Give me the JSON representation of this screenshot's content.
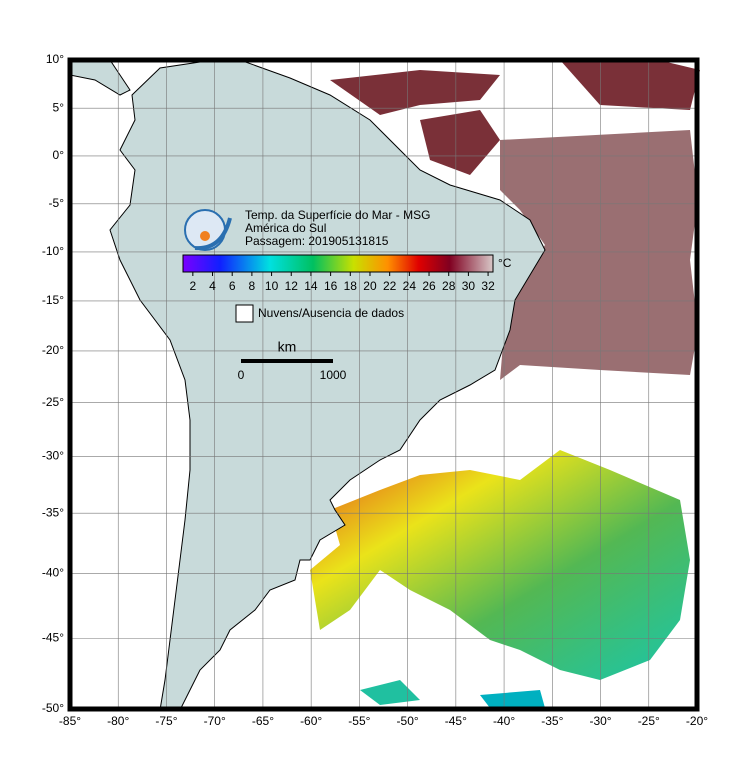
{
  "map": {
    "title": [
      "Temp. da Superfície do Mar - MSG",
      "América do Sul",
      "Passagem: 201905131815"
    ],
    "xlim": [
      -85,
      -20
    ],
    "ylim": [
      -50,
      10
    ],
    "xticks": [
      {
        "value": -85,
        "label": "-85°"
      },
      {
        "value": -80,
        "label": "-80°"
      },
      {
        "value": -75,
        "label": "-75°"
      },
      {
        "value": -70,
        "label": "-70°"
      },
      {
        "value": -65,
        "label": "-65°"
      },
      {
        "value": -60,
        "label": "-60°"
      },
      {
        "value": -55,
        "label": "-55°"
      },
      {
        "value": -50,
        "label": "-50°"
      },
      {
        "value": -45,
        "label": "-45°"
      },
      {
        "value": -40,
        "label": "-40°"
      },
      {
        "value": -35,
        "label": "-35°"
      },
      {
        "value": -30,
        "label": "-30°"
      },
      {
        "value": -25,
        "label": "-25°"
      },
      {
        "value": -20,
        "label": "-20°"
      }
    ],
    "yticks": [
      {
        "value": 10,
        "label": "10°"
      },
      {
        "value": 5,
        "label": "5°"
      },
      {
        "value": 0,
        "label": "0°"
      },
      {
        "value": -5,
        "label": "-5°"
      },
      {
        "value": -10,
        "label": "-10°"
      },
      {
        "value": -15,
        "label": "-15°"
      },
      {
        "value": -20,
        "label": "-20°"
      },
      {
        "value": -25,
        "label": "-25°"
      },
      {
        "value": -30,
        "label": "-30°"
      },
      {
        "value": -35,
        "label": "-35°"
      },
      {
        "value": -40,
        "label": "-40°"
      },
      {
        "value": -45,
        "label": "-45°"
      },
      {
        "value": -50,
        "label": "-50°"
      }
    ],
    "colorbar": {
      "unit": "°C",
      "clim": [
        1,
        32.5
      ],
      "ticks": [
        2,
        4,
        6,
        8,
        10,
        12,
        14,
        16,
        18,
        20,
        22,
        24,
        26,
        28,
        30,
        32
      ]
    },
    "legend": "Nuvens/Ausencia de dados",
    "scale_bar": {
      "unit": "km",
      "labels": [
        "0",
        "1000"
      ]
    }
  }
}
